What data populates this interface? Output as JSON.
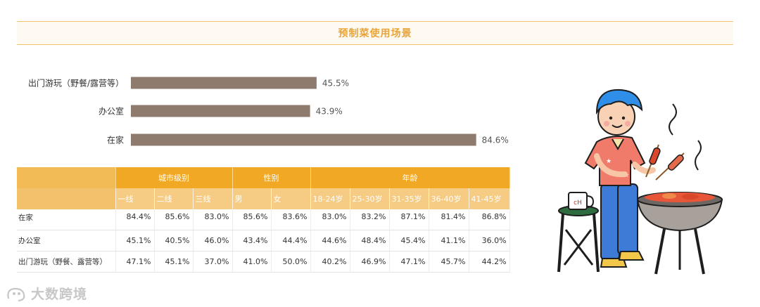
{
  "title": "预制菜使用场景",
  "chart_data": {
    "type": "bar",
    "orientation": "horizontal",
    "categories": [
      "出门游玩（野餐/露营等）",
      "办公室",
      "在家"
    ],
    "values": [
      45.5,
      43.9,
      84.6
    ],
    "value_labels": [
      "45.5%",
      "43.9%",
      "84.6%"
    ],
    "xlim": [
      0,
      100
    ],
    "grid": false,
    "bar_color": "#8e7b6d"
  },
  "table": {
    "groups": [
      {
        "label": "",
        "span": 1
      },
      {
        "label": "城市级别",
        "span": 3
      },
      {
        "label": "性别",
        "span": 2
      },
      {
        "label": "年龄",
        "span": 5
      }
    ],
    "columns": [
      "",
      "一线",
      "二线",
      "三线",
      "男",
      "女",
      "18-24岁",
      "25-30岁",
      "31-35岁",
      "36-40岁",
      "41-45岁"
    ],
    "rows": [
      {
        "label": "在家",
        "values": [
          "84.4%",
          "85.6%",
          "83.0%",
          "85.6%",
          "83.6%",
          "83.0%",
          "83.2%",
          "87.1%",
          "81.4%",
          "86.8%"
        ]
      },
      {
        "label": "办公室",
        "values": [
          "45.1%",
          "40.5%",
          "46.0%",
          "43.4%",
          "44.4%",
          "44.6%",
          "48.4%",
          "45.4%",
          "41.1%",
          "36.0%"
        ]
      },
      {
        "label": "出门游玩（野餐、露营等）",
        "values": [
          "47.1%",
          "45.1%",
          "37.0%",
          "41.0%",
          "50.0%",
          "40.2%",
          "46.9%",
          "47.1%",
          "45.7%",
          "44.2%"
        ]
      }
    ]
  },
  "illustration": {
    "mug_text": "cH"
  },
  "watermark": {
    "text": "大数跨境",
    "icon": "logo-icon"
  },
  "colors": {
    "accent": "#f1a925",
    "title": "#e9a43a",
    "header_light": "#f6cb84",
    "hair": "#2f8fe8"
  }
}
